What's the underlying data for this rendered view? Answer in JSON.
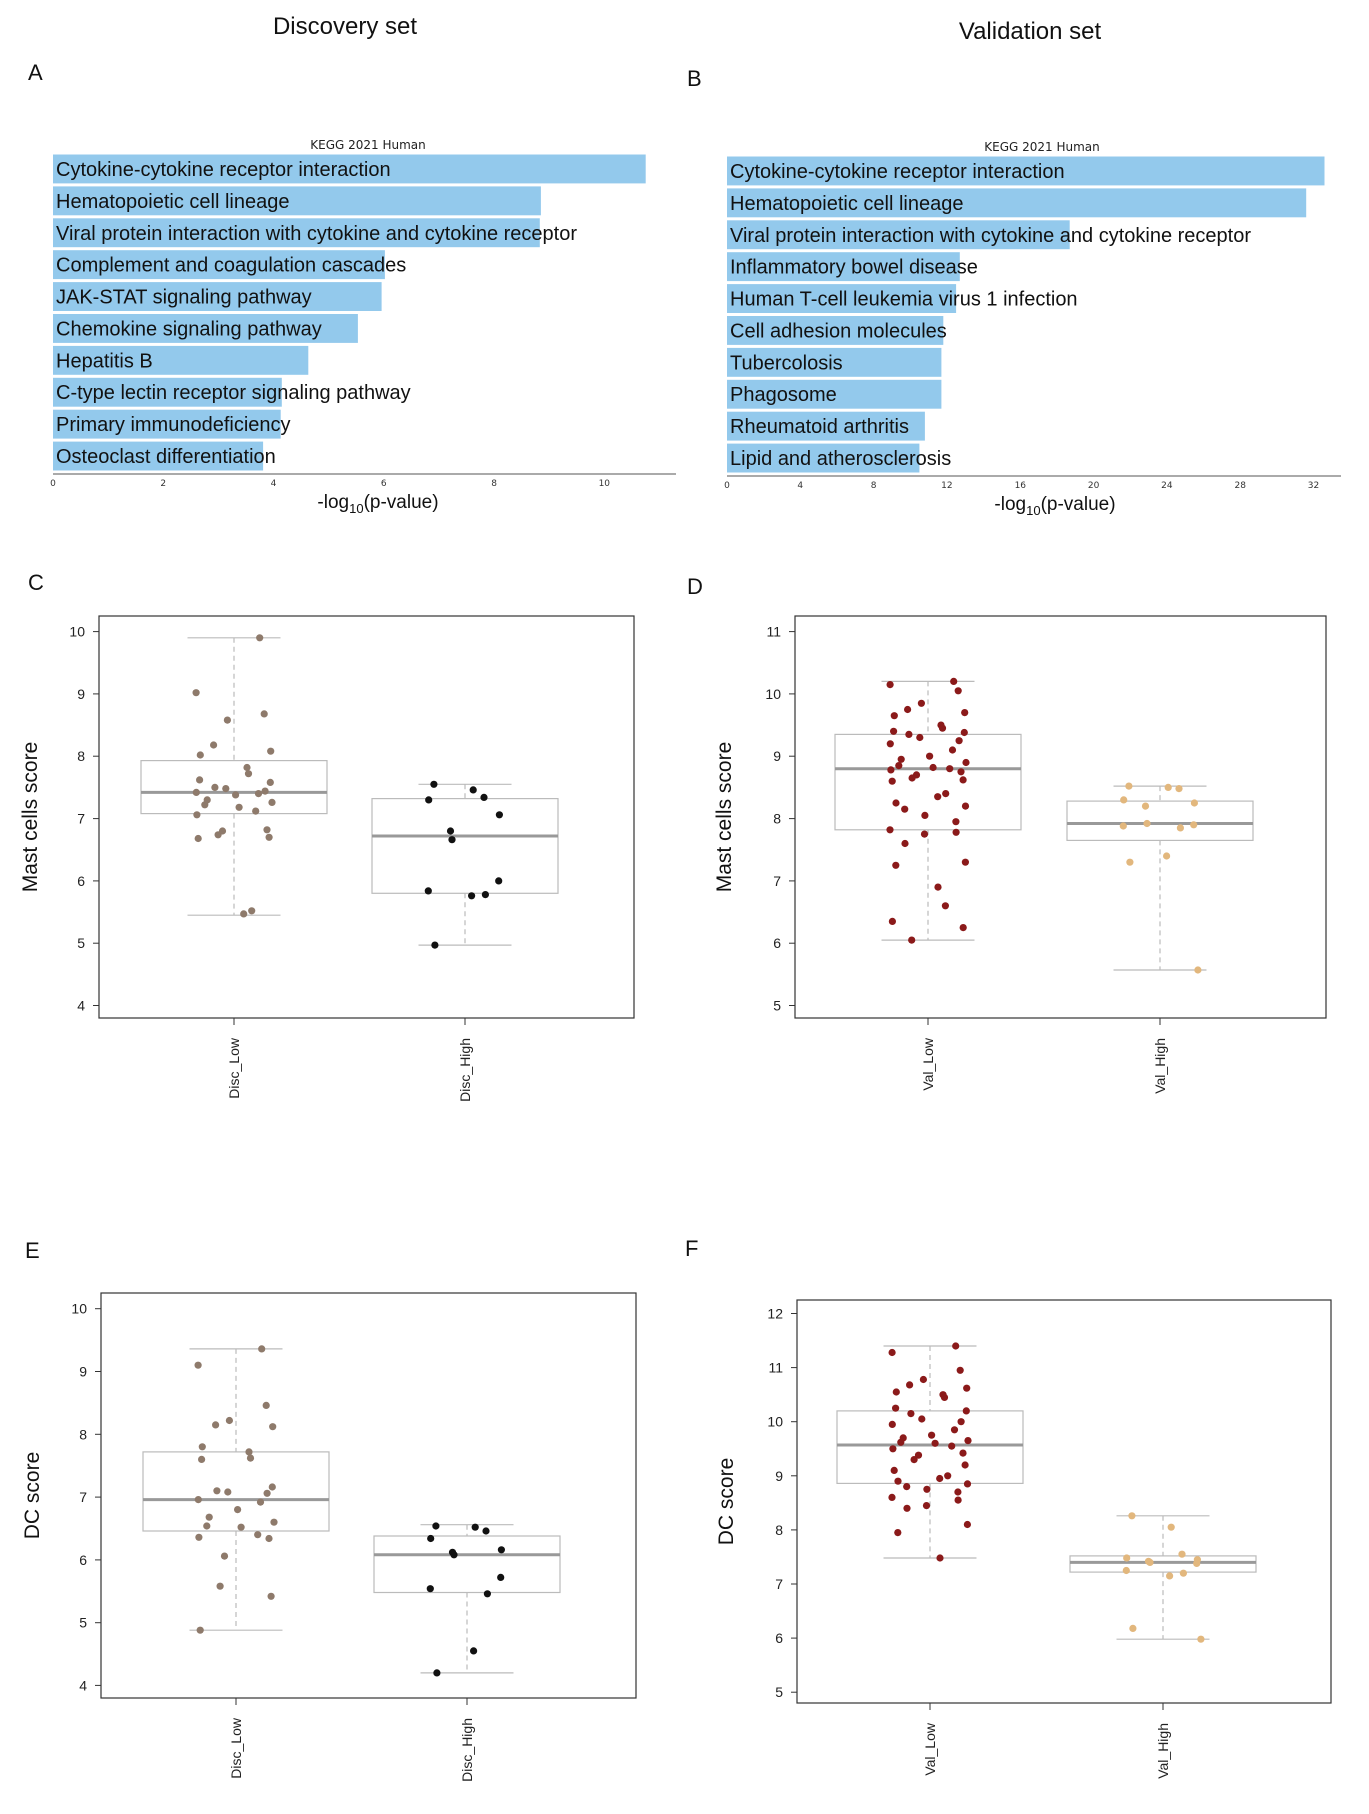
{
  "headers": {
    "left": "Discovery set",
    "right": "Validation set"
  },
  "colors": {
    "bar": "#93C9EC",
    "disc_low": "#8E7A6B",
    "disc_high": "#111111",
    "val_low": "#8B1A1A",
    "val_high": "#E2B77D"
  },
  "chart_data": [
    {
      "panel": "A",
      "type": "bar",
      "orientation": "horizontal",
      "title": "KEGG 2021 Human",
      "xlabel_main": "-log",
      "xlabel_sub": "10",
      "xlabel_rest": "(p-value)",
      "xlim": [
        0,
        11.3
      ],
      "ticks": [
        "0",
        "2",
        "4",
        "6",
        "8",
        "10"
      ],
      "categories": [
        "Cytokine-cytokine receptor interaction",
        "Hematopoietic cell lineage",
        "Viral protein interaction with cytokine and cytokine receptor",
        "Complement and coagulation cascades",
        "JAK-STAT signaling pathway",
        "Chemokine signaling pathway",
        "Hepatitis B",
        "C-type lectin receptor signaling pathway",
        "Primary immunodeficiency",
        "Osteoclast differentiation"
      ],
      "values": [
        10.75,
        8.85,
        8.83,
        6.02,
        5.96,
        5.53,
        4.63,
        4.15,
        4.13,
        3.81
      ]
    },
    {
      "panel": "B",
      "type": "bar",
      "orientation": "horizontal",
      "title": "KEGG 2021 Human",
      "xlabel_main": "-log",
      "xlabel_sub": "10",
      "xlabel_rest": "(p-value)",
      "xlim": [
        0,
        33.5
      ],
      "ticks": [
        "0",
        "4",
        "8",
        "12",
        "16",
        "20",
        "24",
        "28",
        "32"
      ],
      "categories": [
        "Cytokine-cytokine receptor interaction",
        "Hematopoietic cell lineage",
        "Viral protein interaction with cytokine and cytokine receptor",
        "Inflammatory bowel disease",
        "Human T-cell leukemia virus 1 infection",
        "Cell adhesion molecules",
        "Tubercolosis",
        "Phagosome",
        "Rheumatoid arthritis",
        "Lipid and atherosclerosis"
      ],
      "values": [
        32.6,
        31.6,
        18.7,
        12.7,
        12.5,
        11.8,
        11.7,
        11.7,
        10.8,
        10.5
      ]
    },
    {
      "panel": "C",
      "type": "box",
      "ylabel": "Mast cells score",
      "ylim": [
        3.8,
        10.25
      ],
      "yticks": [
        "4",
        "5",
        "6",
        "7",
        "8",
        "9",
        "10"
      ],
      "groups": [
        {
          "name": "Disc_Low",
          "color_key": "disc_low",
          "box": {
            "min": 5.45,
            "q1": 7.08,
            "median": 7.42,
            "q3": 7.93,
            "max": 9.9
          },
          "points": [
            9.9,
            9.02,
            8.68,
            8.58,
            8.18,
            8.08,
            8.02,
            7.82,
            7.72,
            7.62,
            7.58,
            7.5,
            7.48,
            7.44,
            7.42,
            7.4,
            7.38,
            7.3,
            7.26,
            7.22,
            7.18,
            7.12,
            7.06,
            6.82,
            6.8,
            6.74,
            6.7,
            6.68,
            5.52,
            5.47
          ]
        },
        {
          "name": "Disc_High",
          "color_key": "disc_high",
          "box": {
            "min": 4.97,
            "q1": 5.8,
            "median": 6.72,
            "q3": 7.32,
            "max": 7.55
          },
          "points": [
            7.55,
            7.46,
            7.34,
            7.3,
            7.06,
            6.8,
            6.66,
            6.0,
            5.84,
            5.78,
            5.76,
            4.97
          ]
        }
      ]
    },
    {
      "panel": "D",
      "type": "box",
      "ylabel": "Mast cells score",
      "ylim": [
        4.8,
        11.25
      ],
      "yticks": [
        "5",
        "6",
        "7",
        "8",
        "9",
        "10",
        "11"
      ],
      "groups": [
        {
          "name": "Val_Low",
          "color_key": "val_low",
          "box": {
            "min": 6.05,
            "q1": 7.82,
            "median": 8.8,
            "q3": 9.35,
            "max": 10.2
          },
          "points": [
            10.2,
            10.15,
            10.05,
            9.85,
            9.75,
            9.7,
            9.65,
            9.5,
            9.45,
            9.4,
            9.38,
            9.35,
            9.3,
            9.25,
            9.2,
            9.1,
            9.0,
            8.95,
            8.9,
            8.85,
            8.82,
            8.8,
            8.78,
            8.75,
            8.7,
            8.65,
            8.62,
            8.6,
            8.4,
            8.35,
            8.25,
            8.2,
            8.15,
            8.05,
            7.95,
            7.82,
            7.78,
            7.75,
            7.6,
            7.3,
            7.25,
            6.9,
            6.6,
            6.35,
            6.25,
            6.05
          ]
        },
        {
          "name": "Val_High",
          "color_key": "val_high",
          "box": {
            "min": 5.57,
            "q1": 7.65,
            "median": 7.92,
            "q3": 8.28,
            "max": 8.52
          },
          "points": [
            8.52,
            8.5,
            8.48,
            8.3,
            8.25,
            8.2,
            7.92,
            7.9,
            7.88,
            7.85,
            7.4,
            7.3,
            5.57
          ]
        }
      ]
    },
    {
      "panel": "E",
      "type": "box",
      "ylabel": "DC score",
      "ylim": [
        3.8,
        10.25
      ],
      "yticks": [
        "4",
        "5",
        "6",
        "7",
        "8",
        "9",
        "10"
      ],
      "groups": [
        {
          "name": "Disc_Low",
          "color_key": "disc_low",
          "box": {
            "min": 4.88,
            "q1": 6.46,
            "median": 6.96,
            "q3": 7.72,
            "max": 9.36
          },
          "points": [
            9.36,
            9.1,
            8.46,
            8.22,
            8.15,
            8.12,
            7.8,
            7.72,
            7.62,
            7.6,
            7.16,
            7.1,
            7.08,
            7.06,
            6.96,
            6.92,
            6.8,
            6.68,
            6.6,
            6.54,
            6.52,
            6.4,
            6.36,
            6.34,
            6.06,
            5.58,
            5.42,
            4.88
          ]
        },
        {
          "name": "Disc_High",
          "color_key": "disc_high",
          "box": {
            "min": 4.2,
            "q1": 5.48,
            "median": 6.08,
            "q3": 6.38,
            "max": 6.56
          },
          "points": [
            6.54,
            6.52,
            6.46,
            6.34,
            6.16,
            6.12,
            6.08,
            5.72,
            5.54,
            5.46,
            4.55,
            4.2
          ]
        }
      ]
    },
    {
      "panel": "F",
      "type": "box",
      "ylabel": "DC score",
      "ylim": [
        4.8,
        12.25
      ],
      "yticks": [
        "5",
        "6",
        "7",
        "8",
        "9",
        "10",
        "11",
        "12"
      ],
      "groups": [
        {
          "name": "Val_Low",
          "color_key": "val_low",
          "box": {
            "min": 7.48,
            "q1": 8.86,
            "median": 9.57,
            "q3": 10.2,
            "max": 11.4
          },
          "points": [
            11.4,
            11.28,
            10.95,
            10.78,
            10.68,
            10.62,
            10.55,
            10.5,
            10.45,
            10.25,
            10.2,
            10.15,
            10.05,
            10.0,
            9.95,
            9.85,
            9.75,
            9.7,
            9.65,
            9.62,
            9.6,
            9.55,
            9.5,
            9.42,
            9.38,
            9.3,
            9.2,
            9.1,
            9.0,
            8.95,
            8.9,
            8.85,
            8.8,
            8.75,
            8.7,
            8.6,
            8.55,
            8.45,
            8.4,
            8.1,
            7.95,
            7.48
          ]
        },
        {
          "name": "Val_High",
          "color_key": "val_high",
          "box": {
            "min": 5.98,
            "q1": 7.22,
            "median": 7.4,
            "q3": 7.52,
            "max": 8.26
          },
          "points": [
            8.26,
            8.05,
            7.55,
            7.48,
            7.45,
            7.42,
            7.4,
            7.38,
            7.25,
            7.2,
            7.15,
            6.18,
            5.98
          ]
        }
      ]
    }
  ]
}
